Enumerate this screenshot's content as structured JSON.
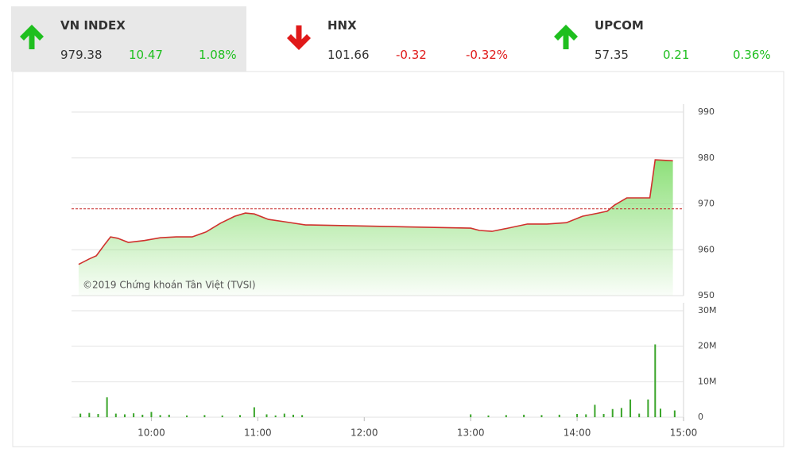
{
  "indices": [
    {
      "name": "VN INDEX",
      "value": "979.38",
      "change": "10.47",
      "percent": "1.08%",
      "direction": "up",
      "selected": true
    },
    {
      "name": "HNX",
      "value": "101.66",
      "change": "-0.32",
      "percent": "-0.32%",
      "direction": "down",
      "selected": false
    },
    {
      "name": "UPCOM",
      "value": "57.35",
      "change": "0.21",
      "percent": "0.36%",
      "direction": "up",
      "selected": false
    }
  ],
  "watermark": "©2019 Chứng khoán Tân Việt (TVSI)",
  "chart_data": [
    {
      "type": "line",
      "x": [
        "09:19",
        "09:25",
        "09:29",
        "09:34",
        "09:37",
        "09:41",
        "09:47",
        "09:56",
        "10:05",
        "10:14",
        "10:23",
        "10:31",
        "10:39",
        "10:47",
        "10:53",
        "10:58",
        "11:06",
        "11:15",
        "11:27",
        "11:30",
        "13:00",
        "13:05",
        "13:12",
        "13:21",
        "13:32",
        "13:43",
        "13:54",
        "14:03",
        "14:12",
        "14:17",
        "14:21",
        "14:28",
        "14:41",
        "14:44",
        "14:54"
      ],
      "values": [
        956.8,
        958,
        958.7,
        961.3,
        962.8,
        962.5,
        961.6,
        962,
        962.6,
        962.8,
        962.8,
        963.9,
        965.8,
        967.3,
        968,
        967.8,
        966.6,
        966.1,
        965.4,
        965.4,
        964.7,
        964.2,
        964,
        964.7,
        965.6,
        965.6,
        965.9,
        967.3,
        968,
        968.4,
        969.7,
        971.3,
        971.3,
        979.6,
        979.38
      ],
      "color": "#d0312d",
      "area_color": "#8ee07a",
      "reference": 968.91,
      "reference_color": "#c62828",
      "xlim": [
        "09:15",
        "15:00"
      ],
      "ylim": [
        950,
        990
      ],
      "yticks": [
        950,
        960,
        970,
        980,
        990
      ],
      "grid": true
    },
    {
      "type": "bar",
      "x": [
        "09:20",
        "09:25",
        "09:30",
        "09:35",
        "09:40",
        "09:45",
        "09:50",
        "09:55",
        "10:00",
        "10:05",
        "10:10",
        "10:20",
        "10:30",
        "10:40",
        "10:50",
        "10:58",
        "11:05",
        "11:10",
        "11:15",
        "11:20",
        "11:25",
        "13:00",
        "13:10",
        "13:20",
        "13:30",
        "13:40",
        "13:50",
        "14:00",
        "14:05",
        "14:10",
        "14:15",
        "14:20",
        "14:25",
        "14:30",
        "14:35",
        "14:40",
        "14:44",
        "14:47",
        "14:55"
      ],
      "values": [
        1.0,
        1.2,
        0.9,
        5.6,
        1.0,
        0.8,
        1.1,
        0.7,
        1.5,
        0.6,
        0.7,
        0.5,
        0.6,
        0.5,
        0.6,
        2.8,
        0.8,
        0.5,
        1.0,
        0.7,
        0.6,
        0.8,
        0.5,
        0.6,
        0.7,
        0.6,
        0.7,
        0.9,
        0.8,
        3.5,
        0.9,
        2.3,
        2.6,
        5.0,
        1.0,
        5.0,
        20.5,
        2.4,
        1.9
      ],
      "color": "#3aa52a",
      "xlim": [
        "09:15",
        "15:00"
      ],
      "xticks": [
        "10:00",
        "11:00",
        "12:00",
        "13:00",
        "14:00",
        "15:00"
      ],
      "ylim": [
        0,
        30
      ],
      "yticks": [
        0,
        {
          "value": 10,
          "label": "10M"
        },
        {
          "value": 20,
          "label": "20M"
        },
        {
          "value": 30,
          "label": "30M"
        }
      ],
      "grid": true
    }
  ]
}
